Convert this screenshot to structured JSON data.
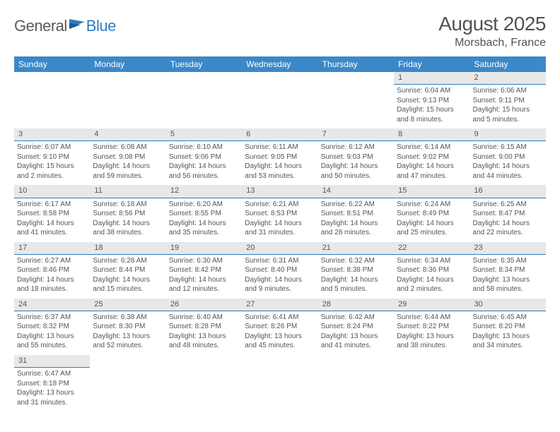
{
  "logo": {
    "general": "General",
    "blue": "Blue"
  },
  "title": "August 2025",
  "location": "Morsbach, France",
  "colors": {
    "header_bg": "#3b88c9",
    "daynum_bg": "#e8e8e8",
    "divider": "#2d7cc0",
    "text": "#555555",
    "page_bg": "#ffffff"
  },
  "typography": {
    "title_fontsize": 28,
    "location_fontsize": 16,
    "header_fontsize": 12,
    "daynum_fontsize": 11,
    "body_fontsize": 10
  },
  "day_headers": [
    "Sunday",
    "Monday",
    "Tuesday",
    "Wednesday",
    "Thursday",
    "Friday",
    "Saturday"
  ],
  "weeks": [
    [
      null,
      null,
      null,
      null,
      null,
      {
        "n": "1",
        "sunrise": "Sunrise: 6:04 AM",
        "sunset": "Sunset: 9:13 PM",
        "daylight": "Daylight: 15 hours and 8 minutes."
      },
      {
        "n": "2",
        "sunrise": "Sunrise: 6:06 AM",
        "sunset": "Sunset: 9:11 PM",
        "daylight": "Daylight: 15 hours and 5 minutes."
      }
    ],
    [
      {
        "n": "3",
        "sunrise": "Sunrise: 6:07 AM",
        "sunset": "Sunset: 9:10 PM",
        "daylight": "Daylight: 15 hours and 2 minutes."
      },
      {
        "n": "4",
        "sunrise": "Sunrise: 6:08 AM",
        "sunset": "Sunset: 9:08 PM",
        "daylight": "Daylight: 14 hours and 59 minutes."
      },
      {
        "n": "5",
        "sunrise": "Sunrise: 6:10 AM",
        "sunset": "Sunset: 9:06 PM",
        "daylight": "Daylight: 14 hours and 56 minutes."
      },
      {
        "n": "6",
        "sunrise": "Sunrise: 6:11 AM",
        "sunset": "Sunset: 9:05 PM",
        "daylight": "Daylight: 14 hours and 53 minutes."
      },
      {
        "n": "7",
        "sunrise": "Sunrise: 6:12 AM",
        "sunset": "Sunset: 9:03 PM",
        "daylight": "Daylight: 14 hours and 50 minutes."
      },
      {
        "n": "8",
        "sunrise": "Sunrise: 6:14 AM",
        "sunset": "Sunset: 9:02 PM",
        "daylight": "Daylight: 14 hours and 47 minutes."
      },
      {
        "n": "9",
        "sunrise": "Sunrise: 6:15 AM",
        "sunset": "Sunset: 9:00 PM",
        "daylight": "Daylight: 14 hours and 44 minutes."
      }
    ],
    [
      {
        "n": "10",
        "sunrise": "Sunrise: 6:17 AM",
        "sunset": "Sunset: 8:58 PM",
        "daylight": "Daylight: 14 hours and 41 minutes."
      },
      {
        "n": "11",
        "sunrise": "Sunrise: 6:18 AM",
        "sunset": "Sunset: 8:56 PM",
        "daylight": "Daylight: 14 hours and 38 minutes."
      },
      {
        "n": "12",
        "sunrise": "Sunrise: 6:20 AM",
        "sunset": "Sunset: 8:55 PM",
        "daylight": "Daylight: 14 hours and 35 minutes."
      },
      {
        "n": "13",
        "sunrise": "Sunrise: 6:21 AM",
        "sunset": "Sunset: 8:53 PM",
        "daylight": "Daylight: 14 hours and 31 minutes."
      },
      {
        "n": "14",
        "sunrise": "Sunrise: 6:22 AM",
        "sunset": "Sunset: 8:51 PM",
        "daylight": "Daylight: 14 hours and 28 minutes."
      },
      {
        "n": "15",
        "sunrise": "Sunrise: 6:24 AM",
        "sunset": "Sunset: 8:49 PM",
        "daylight": "Daylight: 14 hours and 25 minutes."
      },
      {
        "n": "16",
        "sunrise": "Sunrise: 6:25 AM",
        "sunset": "Sunset: 8:47 PM",
        "daylight": "Daylight: 14 hours and 22 minutes."
      }
    ],
    [
      {
        "n": "17",
        "sunrise": "Sunrise: 6:27 AM",
        "sunset": "Sunset: 8:46 PM",
        "daylight": "Daylight: 14 hours and 18 minutes."
      },
      {
        "n": "18",
        "sunrise": "Sunrise: 6:28 AM",
        "sunset": "Sunset: 8:44 PM",
        "daylight": "Daylight: 14 hours and 15 minutes."
      },
      {
        "n": "19",
        "sunrise": "Sunrise: 6:30 AM",
        "sunset": "Sunset: 8:42 PM",
        "daylight": "Daylight: 14 hours and 12 minutes."
      },
      {
        "n": "20",
        "sunrise": "Sunrise: 6:31 AM",
        "sunset": "Sunset: 8:40 PM",
        "daylight": "Daylight: 14 hours and 9 minutes."
      },
      {
        "n": "21",
        "sunrise": "Sunrise: 6:32 AM",
        "sunset": "Sunset: 8:38 PM",
        "daylight": "Daylight: 14 hours and 5 minutes."
      },
      {
        "n": "22",
        "sunrise": "Sunrise: 6:34 AM",
        "sunset": "Sunset: 8:36 PM",
        "daylight": "Daylight: 14 hours and 2 minutes."
      },
      {
        "n": "23",
        "sunrise": "Sunrise: 6:35 AM",
        "sunset": "Sunset: 8:34 PM",
        "daylight": "Daylight: 13 hours and 58 minutes."
      }
    ],
    [
      {
        "n": "24",
        "sunrise": "Sunrise: 6:37 AM",
        "sunset": "Sunset: 8:32 PM",
        "daylight": "Daylight: 13 hours and 55 minutes."
      },
      {
        "n": "25",
        "sunrise": "Sunrise: 6:38 AM",
        "sunset": "Sunset: 8:30 PM",
        "daylight": "Daylight: 13 hours and 52 minutes."
      },
      {
        "n": "26",
        "sunrise": "Sunrise: 6:40 AM",
        "sunset": "Sunset: 8:28 PM",
        "daylight": "Daylight: 13 hours and 48 minutes."
      },
      {
        "n": "27",
        "sunrise": "Sunrise: 6:41 AM",
        "sunset": "Sunset: 8:26 PM",
        "daylight": "Daylight: 13 hours and 45 minutes."
      },
      {
        "n": "28",
        "sunrise": "Sunrise: 6:42 AM",
        "sunset": "Sunset: 8:24 PM",
        "daylight": "Daylight: 13 hours and 41 minutes."
      },
      {
        "n": "29",
        "sunrise": "Sunrise: 6:44 AM",
        "sunset": "Sunset: 8:22 PM",
        "daylight": "Daylight: 13 hours and 38 minutes."
      },
      {
        "n": "30",
        "sunrise": "Sunrise: 6:45 AM",
        "sunset": "Sunset: 8:20 PM",
        "daylight": "Daylight: 13 hours and 34 minutes."
      }
    ],
    [
      {
        "n": "31",
        "sunrise": "Sunrise: 6:47 AM",
        "sunset": "Sunset: 8:18 PM",
        "daylight": "Daylight: 13 hours and 31 minutes."
      },
      null,
      null,
      null,
      null,
      null,
      null
    ]
  ]
}
